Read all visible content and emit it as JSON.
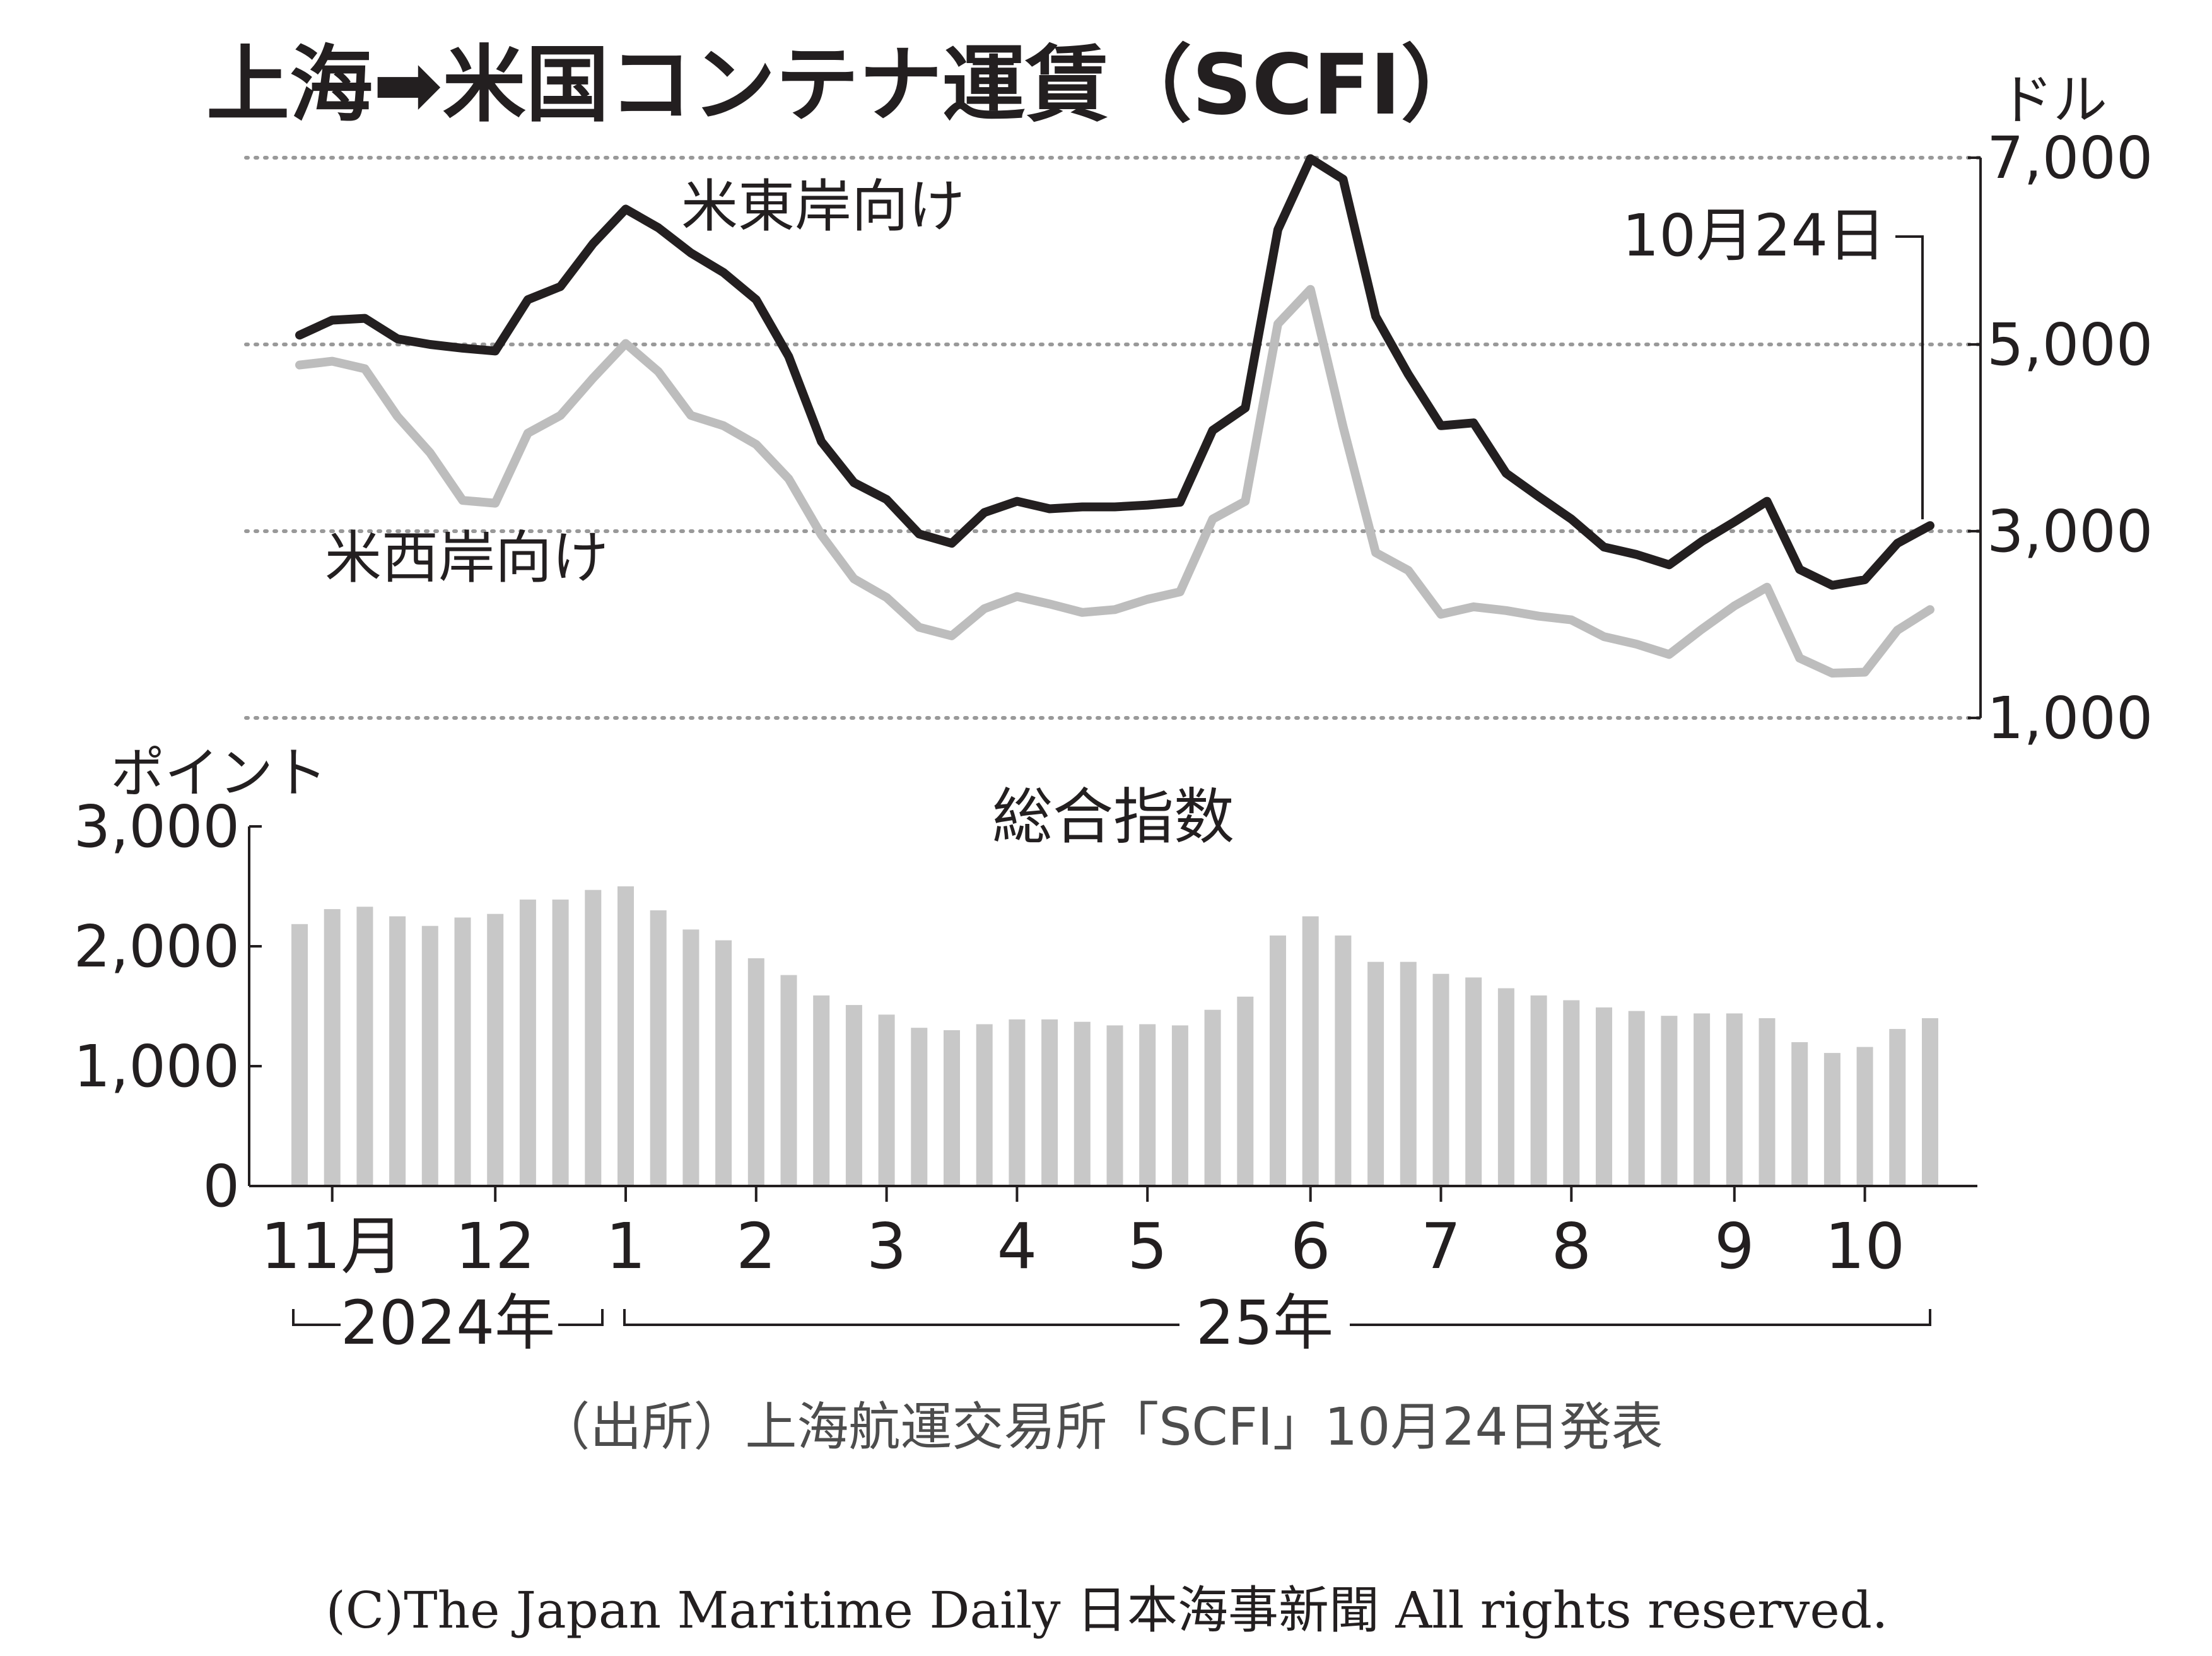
{
  "title": "上海➡米国コンテナ運賃（SCFI）",
  "colors": {
    "east": "#231f20",
    "west": "#bdbdbd",
    "bars": "#c8c8c8",
    "grid": "#999999",
    "text": "#231f20"
  },
  "chart_data": [
    {
      "type": "line",
      "title": "上海➡米国コンテナ運賃（SCFI）",
      "ylabel": "ドル",
      "ylim": [
        1000,
        7000
      ],
      "yticks": [
        1000,
        3000,
        5000,
        7000
      ],
      "ytick_labels": [
        "1,000",
        "3,000",
        "5,000",
        "7,000"
      ],
      "grid": true,
      "annotation": "10月24日",
      "series": [
        {
          "name": "米東岸向け",
          "values": [
            5100,
            5260,
            5280,
            5060,
            5000,
            4960,
            4930,
            5480,
            5620,
            6080,
            6450,
            6250,
            5980,
            5770,
            5480,
            4870,
            3960,
            3520,
            3340,
            2970,
            2870,
            3200,
            3320,
            3240,
            3260,
            3260,
            3280,
            3310,
            4080,
            4320,
            6230,
            6990,
            6770,
            5300,
            4680,
            4130,
            4160,
            3620,
            3370,
            3130,
            2830,
            2750,
            2640,
            2890,
            3100,
            3320,
            2590,
            2420,
            2480,
            2870,
            3060
          ]
        },
        {
          "name": "米西岸向け",
          "values": [
            4780,
            4820,
            4740,
            4230,
            3840,
            3330,
            3300,
            4050,
            4240,
            4640,
            5010,
            4710,
            4240,
            4130,
            3930,
            3560,
            2960,
            2490,
            2290,
            1970,
            1880,
            2170,
            2300,
            2220,
            2130,
            2160,
            2270,
            2350,
            3130,
            3320,
            5220,
            5590,
            4120,
            2770,
            2580,
            2110,
            2190,
            2150,
            2090,
            2050,
            1870,
            1790,
            1680,
            1950,
            2200,
            2400,
            1640,
            1480,
            1490,
            1940,
            2160
          ]
        }
      ]
    },
    {
      "type": "bar",
      "title": "総合指数",
      "ylabel": "ポイント",
      "ylim": [
        0,
        3000
      ],
      "yticks": [
        0,
        1000,
        2000,
        3000
      ],
      "ytick_labels": [
        "0",
        "1,000",
        "2,000",
        "3,000"
      ],
      "values": [
        2185,
        2310,
        2330,
        2250,
        2170,
        2240,
        2270,
        2390,
        2390,
        2470,
        2500,
        2300,
        2140,
        2050,
        1900,
        1760,
        1590,
        1510,
        1430,
        1320,
        1300,
        1350,
        1390,
        1390,
        1370,
        1340,
        1350,
        1340,
        1470,
        1580,
        2090,
        2250,
        2090,
        1870,
        1870,
        1770,
        1740,
        1650,
        1590,
        1550,
        1490,
        1460,
        1420,
        1440,
        1440,
        1400,
        1200,
        1110,
        1160,
        1310,
        1400
      ],
      "xtick_labels": [
        "11月",
        "12",
        "1",
        "2",
        "3",
        "4",
        "5",
        "6",
        "7",
        "8",
        "9",
        "10"
      ],
      "year_labels": [
        "2024年",
        "25年"
      ]
    }
  ],
  "source": "（出所）上海航運交易所「SCFI」10月24日発表",
  "copyright": "(C)The Japan Maritime Daily 日本海事新聞 All rights reserved."
}
